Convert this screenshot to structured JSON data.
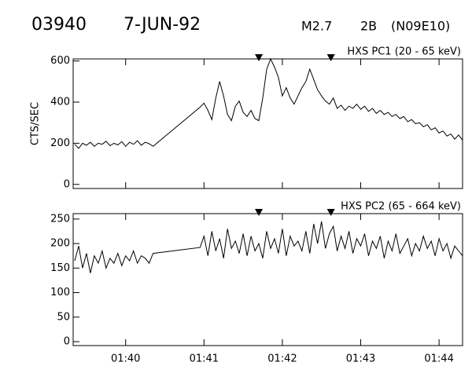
{
  "header": {
    "id": "03940",
    "date": "7-JUN-92",
    "goes_class": "M2.7",
    "optical_class": "2B",
    "location": "(N09E10)"
  },
  "chart_data": [
    {
      "type": "line",
      "title": "HXS PC1 (20 - 65 keV)",
      "ylabel": "CTS/SEC",
      "color": "#000000",
      "x": [
        39.35,
        39.4,
        39.45,
        39.5,
        39.55,
        39.6,
        39.65,
        39.7,
        39.75,
        39.8,
        39.85,
        39.9,
        39.95,
        40,
        40.05,
        40.1,
        40.15,
        40.2,
        40.25,
        40.3,
        40.35,
        40.95,
        41,
        41.05,
        41.1,
        41.15,
        41.2,
        41.25,
        41.3,
        41.35,
        41.4,
        41.45,
        41.5,
        41.55,
        41.6,
        41.65,
        41.7,
        41.75,
        41.8,
        41.85,
        41.9,
        41.95,
        42,
        42.05,
        42.1,
        42.15,
        42.2,
        42.25,
        42.3,
        42.35,
        42.4,
        42.45,
        42.5,
        42.55,
        42.6,
        42.65,
        42.7,
        42.75,
        42.8,
        42.85,
        42.9,
        42.95,
        43,
        43.05,
        43.1,
        43.15,
        43.2,
        43.25,
        43.3,
        43.35,
        43.4,
        43.45,
        43.5,
        43.55,
        43.6,
        43.65,
        43.7,
        43.75,
        43.8,
        43.85,
        43.9,
        43.95,
        44,
        44.05,
        44.1,
        44.15,
        44.2,
        44.25,
        44.3
      ],
      "values": [
        195,
        175,
        200,
        190,
        205,
        185,
        200,
        195,
        210,
        188,
        200,
        192,
        208,
        185,
        205,
        195,
        212,
        190,
        205,
        198,
        185,
        375,
        395,
        360,
        315,
        420,
        500,
        430,
        340,
        310,
        380,
        405,
        350,
        330,
        360,
        320,
        310,
        420,
        560,
        610,
        570,
        520,
        430,
        470,
        420,
        390,
        430,
        470,
        500,
        560,
        510,
        460,
        430,
        405,
        390,
        420,
        370,
        385,
        360,
        380,
        370,
        390,
        365,
        380,
        355,
        370,
        345,
        360,
        340,
        350,
        330,
        340,
        320,
        330,
        305,
        315,
        295,
        300,
        280,
        290,
        265,
        275,
        250,
        260,
        235,
        245,
        220,
        240,
        215
      ],
      "xlim": [
        39.33,
        44.3
      ],
      "ylim": [
        -20,
        610
      ],
      "yticks": [
        0,
        200,
        400,
        600
      ],
      "markers": [
        41.7,
        42.62
      ]
    },
    {
      "type": "line",
      "title": "HXS PC2 (65 - 664 keV)",
      "color": "#000000",
      "x": [
        39.35,
        39.4,
        39.45,
        39.5,
        39.55,
        39.6,
        39.65,
        39.7,
        39.75,
        39.8,
        39.85,
        39.9,
        39.95,
        40,
        40.05,
        40.1,
        40.15,
        40.2,
        40.25,
        40.3,
        40.35,
        40.95,
        41,
        41.05,
        41.1,
        41.15,
        41.2,
        41.25,
        41.3,
        41.35,
        41.4,
        41.45,
        41.5,
        41.55,
        41.6,
        41.65,
        41.7,
        41.75,
        41.8,
        41.85,
        41.9,
        41.95,
        42,
        42.05,
        42.1,
        42.15,
        42.2,
        42.25,
        42.3,
        42.35,
        42.4,
        42.45,
        42.5,
        42.55,
        42.6,
        42.65,
        42.7,
        42.75,
        42.8,
        42.85,
        42.9,
        42.95,
        43,
        43.05,
        43.1,
        43.15,
        43.2,
        43.25,
        43.3,
        43.35,
        43.4,
        43.45,
        43.5,
        43.55,
        43.6,
        43.65,
        43.7,
        43.75,
        43.8,
        43.85,
        43.9,
        43.95,
        44,
        44.05,
        44.1,
        44.15,
        44.2,
        44.25,
        44.3
      ],
      "values": [
        165,
        195,
        150,
        180,
        140,
        175,
        160,
        185,
        150,
        170,
        160,
        180,
        155,
        175,
        165,
        185,
        160,
        175,
        170,
        160,
        180,
        192,
        215,
        175,
        225,
        185,
        210,
        170,
        230,
        190,
        205,
        180,
        220,
        175,
        215,
        185,
        200,
        170,
        225,
        190,
        210,
        180,
        230,
        175,
        215,
        195,
        205,
        185,
        225,
        180,
        240,
        200,
        245,
        190,
        220,
        235,
        185,
        215,
        190,
        225,
        180,
        210,
        195,
        220,
        175,
        205,
        190,
        215,
        170,
        205,
        185,
        220,
        180,
        195,
        210,
        175,
        200,
        185,
        215,
        190,
        205,
        175,
        210,
        185,
        200,
        170,
        195,
        185,
        175
      ],
      "xlim": [
        39.33,
        44.3
      ],
      "ylim": [
        -8,
        261
      ],
      "yticks": [
        0,
        50,
        100,
        150,
        200,
        250
      ],
      "xticks": [
        {
          "value": 40,
          "label": "01:40"
        },
        {
          "value": 41,
          "label": "01:41"
        },
        {
          "value": 42,
          "label": "01:42"
        },
        {
          "value": 43,
          "label": "01:43"
        },
        {
          "value": 44,
          "label": "01:44"
        }
      ],
      "markers": [
        41.7,
        42.62
      ]
    }
  ]
}
